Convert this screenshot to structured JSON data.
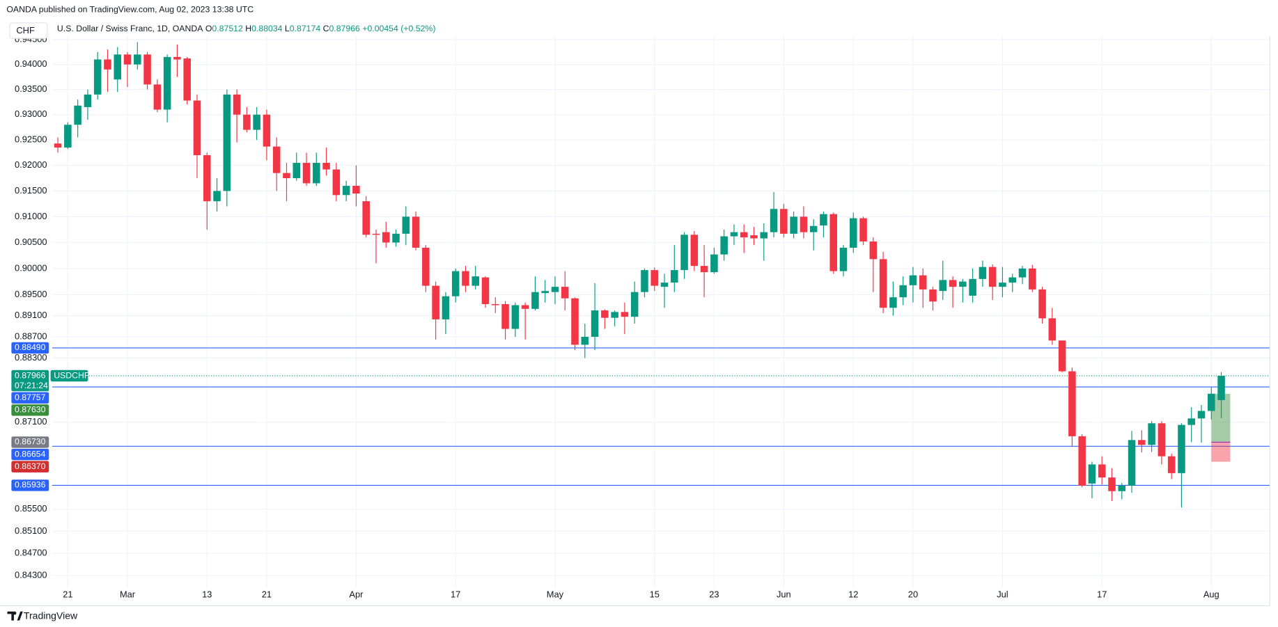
{
  "header": {
    "published": "OANDA published on TradingView.com, Aug 02, 2023 13:38 UTC"
  },
  "chart_data": {
    "type": "candlestick",
    "currency": "CHF",
    "symbol": "U.S. Dollar / Swiss Franc, 1D, OANDA",
    "ohlc_legend": [
      {
        "key": "O",
        "value": 0.87512
      },
      {
        "key": "H",
        "value": 0.88034
      },
      {
        "key": "L",
        "value": 0.87174
      },
      {
        "key": "C",
        "value": 0.87966
      }
    ],
    "change": "+0.00454 (+0.52%)",
    "up_color": "#089981",
    "down_color": "#f23645",
    "log": true,
    "grid": true,
    "ylim": [
      0.8408,
      0.9459
    ],
    "yticks": [
      {
        "value": 0.945,
        "label": "0.94500"
      },
      {
        "value": 0.94,
        "label": "0.94000"
      },
      {
        "value": 0.935,
        "label": "0.93500"
      },
      {
        "value": 0.93,
        "label": "0.93000"
      },
      {
        "value": 0.925,
        "label": "0.92500"
      },
      {
        "value": 0.92,
        "label": "0.92000"
      },
      {
        "value": 0.915,
        "label": "0.91500"
      },
      {
        "value": 0.91,
        "label": "0.91000"
      },
      {
        "value": 0.905,
        "label": "0.90500"
      },
      {
        "value": 0.9,
        "label": "0.90000"
      },
      {
        "value": 0.895,
        "label": "0.89500"
      },
      {
        "value": 0.891,
        "label": "0.89100"
      },
      {
        "value": 0.887,
        "label": "0.88700"
      },
      {
        "value": 0.883,
        "label": "0.88300"
      },
      {
        "value": 0.871,
        "label": "0.87100"
      },
      {
        "value": 0.855,
        "label": "0.85500"
      },
      {
        "value": 0.851,
        "label": "0.85100"
      },
      {
        "value": 0.847,
        "label": "0.84700"
      },
      {
        "value": 0.843,
        "label": "0.84300"
      }
    ],
    "categories": [
      null,
      "21",
      null,
      null,
      null,
      null,
      null,
      "Mar",
      null,
      null,
      null,
      null,
      null,
      null,
      null,
      "13",
      null,
      null,
      null,
      null,
      null,
      "21",
      null,
      null,
      null,
      null,
      null,
      null,
      null,
      null,
      "Apr",
      null,
      null,
      null,
      null,
      null,
      null,
      null,
      null,
      null,
      "17",
      null,
      null,
      null,
      null,
      null,
      null,
      null,
      null,
      null,
      "May",
      null,
      null,
      null,
      null,
      null,
      null,
      null,
      null,
      null,
      "15",
      null,
      null,
      null,
      null,
      null,
      "23",
      null,
      null,
      null,
      null,
      null,
      null,
      "Jun",
      null,
      null,
      null,
      null,
      null,
      null,
      "12",
      null,
      null,
      null,
      null,
      null,
      "20",
      null,
      null,
      null,
      null,
      null,
      null,
      null,
      null,
      "Jul",
      null,
      null,
      null,
      null,
      null,
      null,
      null,
      null,
      null,
      "17",
      null,
      null,
      null,
      null,
      null,
      null,
      null,
      null,
      null,
      null,
      "Aug",
      null
    ],
    "open": [
      0.9243,
      0.9235,
      0.928,
      0.9315,
      0.934,
      0.941,
      0.937,
      0.942,
      0.94,
      0.942,
      0.936,
      0.931,
      0.9415,
      0.9412,
      0.9328,
      0.922,
      0.913,
      0.915,
      0.934,
      0.93,
      0.927,
      0.93,
      0.9237,
      0.9185,
      0.9175,
      0.9205,
      0.9165,
      0.9205,
      0.9192,
      0.9142,
      0.916,
      0.913,
      0.9067,
      0.907,
      0.905,
      0.9067,
      0.91,
      0.904,
      0.8967,
      0.8903,
      0.8947,
      0.8995,
      0.8967,
      0.8983,
      0.8932,
      0.8932,
      0.8885,
      0.893,
      0.8923,
      0.8953,
      0.8955,
      0.8965,
      0.8943,
      0.8855,
      0.887,
      0.892,
      0.8906,
      0.8917,
      0.8908,
      0.8955,
      0.8997,
      0.8965,
      0.8973,
      0.8997,
      0.9065,
      0.9005,
      0.8993,
      0.9027,
      0.9062,
      0.907,
      0.9064,
      0.9058,
      0.907,
      0.9115,
      0.9067,
      0.91,
      0.907,
      0.9083,
      0.9105,
      0.8995,
      0.904,
      0.9097,
      0.9052,
      0.9018,
      0.8925,
      0.8945,
      0.8968,
      0.8987,
      0.896,
      0.8957,
      0.8978,
      0.8965,
      0.8948,
      0.898,
      0.9003,
      0.8965,
      0.8973,
      0.8983,
      0.9,
      0.896,
      0.8905,
      0.8863,
      0.8805,
      0.8684,
      0.8597,
      0.8632,
      0.8608,
      0.8583,
      0.8593,
      0.8677,
      0.8668,
      0.8708,
      0.8647,
      0.8616,
      0.8705,
      0.8717,
      0.8731,
      0.87512
    ],
    "high": [
      0.9255,
      0.9285,
      0.933,
      0.935,
      0.9425,
      0.943,
      0.9435,
      0.9425,
      0.9445,
      0.9425,
      0.937,
      0.942,
      0.944,
      0.9415,
      0.934,
      0.9225,
      0.9175,
      0.935,
      0.935,
      0.9315,
      0.9315,
      0.931,
      0.9255,
      0.9205,
      0.9225,
      0.9225,
      0.9225,
      0.9235,
      0.9205,
      0.917,
      0.92,
      0.914,
      0.9075,
      0.909,
      0.9075,
      0.912,
      0.911,
      0.9045,
      0.8975,
      0.8955,
      0.9,
      0.9005,
      0.9005,
      0.8985,
      0.8945,
      0.8938,
      0.8935,
      0.8935,
      0.8985,
      0.8978,
      0.8985,
      0.8995,
      0.8945,
      0.8895,
      0.8972,
      0.8922,
      0.892,
      0.8935,
      0.8975,
      0.9,
      0.9002,
      0.899,
      0.9045,
      0.907,
      0.9072,
      0.9045,
      0.904,
      0.9075,
      0.9085,
      0.9085,
      0.908,
      0.9087,
      0.9148,
      0.9125,
      0.911,
      0.912,
      0.9095,
      0.911,
      0.9108,
      0.9045,
      0.9108,
      0.91,
      0.906,
      0.9032,
      0.8975,
      0.8985,
      0.9003,
      0.9,
      0.8965,
      0.9015,
      0.8985,
      0.898,
      0.9,
      0.9015,
      0.9008,
      0.9003,
      0.899,
      0.9005,
      0.9007,
      0.8965,
      0.8925,
      0.8863,
      0.8812,
      0.8688,
      0.8637,
      0.8647,
      0.8625,
      0.8598,
      0.8694,
      0.8695,
      0.8712,
      0.8712,
      0.8652,
      0.8708,
      0.8738,
      0.8742,
      0.8775,
      0.88034
    ],
    "low": [
      0.9225,
      0.9232,
      0.9255,
      0.929,
      0.933,
      0.9345,
      0.9345,
      0.9355,
      0.939,
      0.935,
      0.9305,
      0.9285,
      0.9375,
      0.932,
      0.9175,
      0.9075,
      0.911,
      0.912,
      0.9245,
      0.9265,
      0.925,
      0.921,
      0.915,
      0.913,
      0.917,
      0.916,
      0.916,
      0.918,
      0.913,
      0.913,
      0.912,
      0.906,
      0.901,
      0.904,
      0.9042,
      0.9045,
      0.9035,
      0.8955,
      0.8865,
      0.8875,
      0.8935,
      0.8955,
      0.896,
      0.8925,
      0.8915,
      0.8865,
      0.887,
      0.8865,
      0.892,
      0.8935,
      0.8932,
      0.892,
      0.8845,
      0.883,
      0.8845,
      0.8885,
      0.889,
      0.8875,
      0.8895,
      0.8945,
      0.8957,
      0.8925,
      0.8955,
      0.898,
      0.8995,
      0.8945,
      0.899,
      0.9015,
      0.9045,
      0.903,
      0.9045,
      0.9015,
      0.906,
      0.906,
      0.9058,
      0.9058,
      0.9035,
      0.906,
      0.899,
      0.8985,
      0.903,
      0.9045,
      0.8955,
      0.8915,
      0.891,
      0.893,
      0.8935,
      0.8925,
      0.892,
      0.894,
      0.8925,
      0.8935,
      0.8935,
      0.8965,
      0.894,
      0.8945,
      0.8955,
      0.897,
      0.8955,
      0.8895,
      0.8855,
      0.8803,
      0.8665,
      0.859,
      0.857,
      0.8595,
      0.8565,
      0.8568,
      0.858,
      0.8654,
      0.8655,
      0.8632,
      0.8605,
      0.8553,
      0.8673,
      0.8672,
      0.8715,
      0.87174
    ],
    "close": [
      0.9235,
      0.928,
      0.9318,
      0.934,
      0.941,
      0.939,
      0.942,
      0.94,
      0.942,
      0.936,
      0.931,
      0.9415,
      0.941,
      0.9328,
      0.922,
      0.913,
      0.915,
      0.934,
      0.93,
      0.927,
      0.93,
      0.9237,
      0.9185,
      0.9175,
      0.9205,
      0.9165,
      0.9205,
      0.9192,
      0.9142,
      0.916,
      0.9145,
      0.9065,
      0.9065,
      0.905,
      0.9067,
      0.91,
      0.904,
      0.8967,
      0.8903,
      0.8947,
      0.8995,
      0.8967,
      0.8985,
      0.8932,
      0.893,
      0.8885,
      0.893,
      0.8923,
      0.8955,
      0.8957,
      0.8965,
      0.8943,
      0.8855,
      0.887,
      0.892,
      0.8906,
      0.8917,
      0.8908,
      0.8955,
      0.8997,
      0.8967,
      0.8973,
      0.8997,
      0.9065,
      0.9005,
      0.8993,
      0.9027,
      0.9062,
      0.907,
      0.906,
      0.9058,
      0.907,
      0.9115,
      0.9067,
      0.91,
      0.907,
      0.9082,
      0.9105,
      0.8995,
      0.904,
      0.9097,
      0.9052,
      0.9018,
      0.8925,
      0.8945,
      0.8968,
      0.8987,
      0.896,
      0.8937,
      0.8978,
      0.8965,
      0.8975,
      0.898,
      0.9003,
      0.8965,
      0.8973,
      0.8983,
      0.9,
      0.896,
      0.8905,
      0.8863,
      0.8805,
      0.8684,
      0.8593,
      0.8632,
      0.8608,
      0.8583,
      0.8593,
      0.8677,
      0.8668,
      0.8708,
      0.8647,
      0.8616,
      0.8705,
      0.8717,
      0.8731,
      0.8763,
      0.87966
    ],
    "horizontal_lines": [
      {
        "value": 0.8849,
        "label": "0.88490"
      },
      {
        "value": 0.87757,
        "label": "0.87757"
      },
      {
        "value": 0.86654,
        "label": "0.86654"
      },
      {
        "value": 0.85936,
        "label": "0.85936"
      }
    ],
    "line_color": "#2962ff",
    "current_price": {
      "name": "USDCHF",
      "value": 0.87966,
      "countdown": "07:21:24"
    },
    "position": {
      "target": {
        "value": 0.8763,
        "label": "0.87630"
      },
      "entry": {
        "value": 0.8673,
        "label": "0.86730"
      },
      "stop": {
        "value": 0.8637,
        "label": "0.86370"
      }
    }
  },
  "footer": {
    "brand": "TradingView"
  }
}
